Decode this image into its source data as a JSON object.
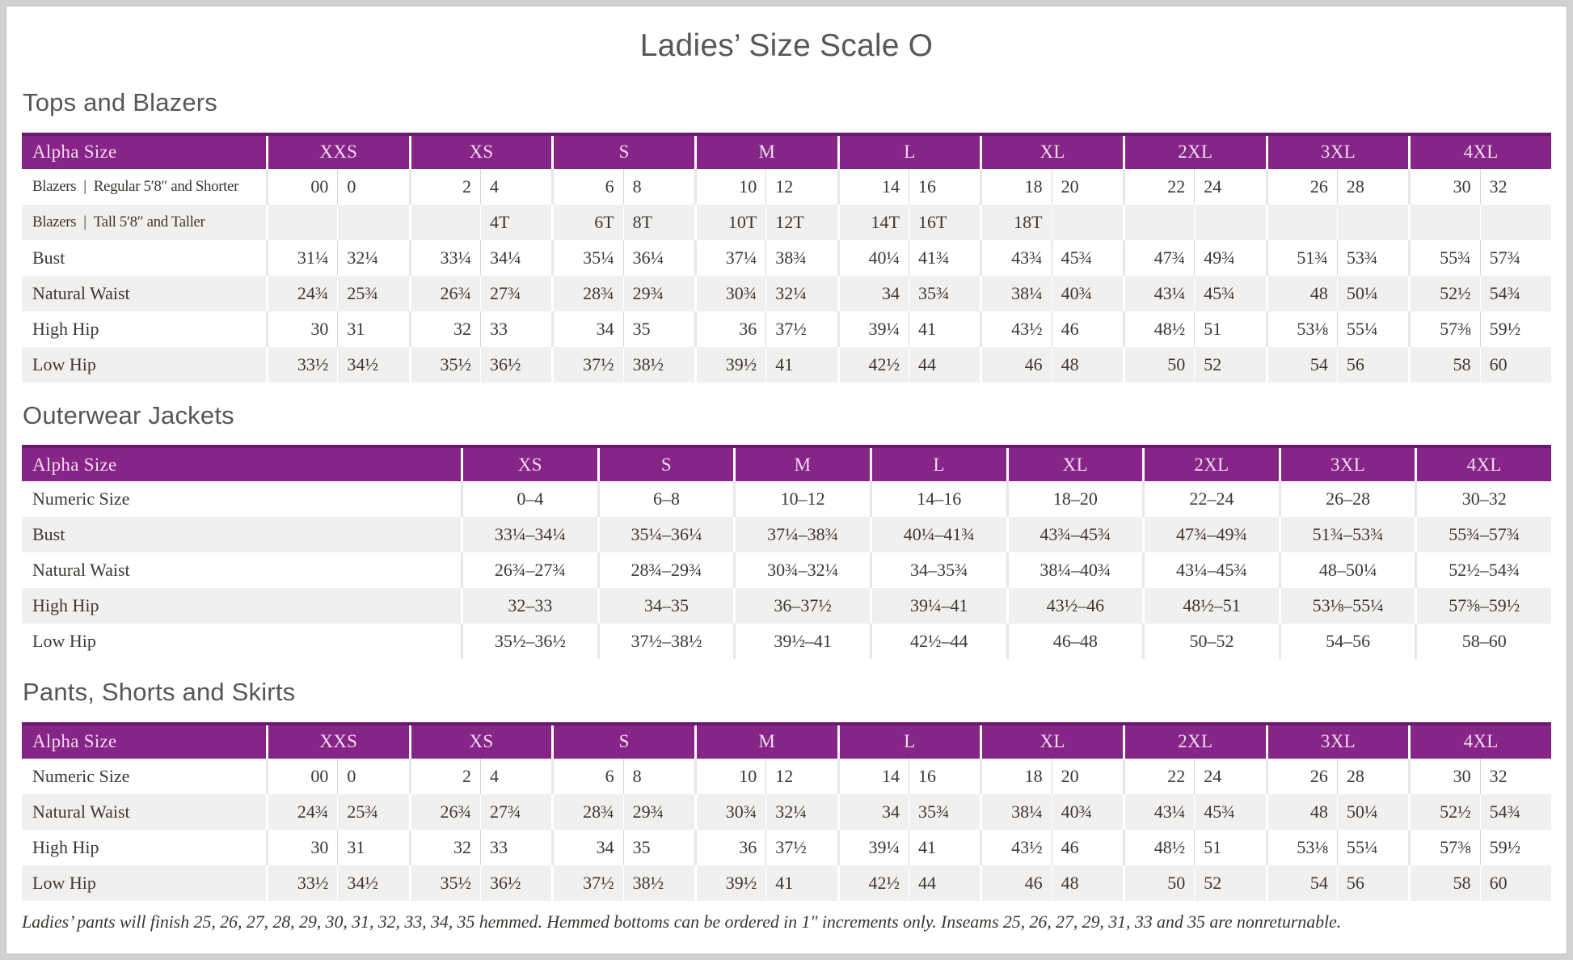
{
  "page": {
    "title": "Ladies’ Size Scale O",
    "footnote": "Ladies’ pants will finish 25, 26, 27, 28, 29, 30, 31, 32, 33, 34, 35 hemmed. Hemmed bottoms can be ordered in 1″ increments only. Inseams 25, 26, 27, 29, 31, 33 and 35 are nonreturnable."
  },
  "colors": {
    "header_purple": "#862487",
    "header_top_line": "#691a6d",
    "header_text": "#f1dcef",
    "row_alt_gray": "#f1f0ee",
    "heading_gray": "#56585a",
    "body_text": "#3b3733",
    "cell_divider": "#d9d7d3",
    "page_frame": "#d3d1cf"
  },
  "tables": [
    {
      "id": "tops-and-blazers",
      "heading": "Tops and Blazers",
      "header_label": "Alpha Size",
      "split": true,
      "sizes": [
        "XXS",
        "XS",
        "S",
        "M",
        "L",
        "XL",
        "2XL",
        "3XL",
        "4XL"
      ],
      "rows": [
        {
          "label": "Blazers | Regular 5′8″ and Shorter",
          "values": [
            "00",
            "0",
            "2",
            "4",
            "6",
            "8",
            "10",
            "12",
            "14",
            "16",
            "18",
            "20",
            "22",
            "24",
            "26",
            "28",
            "30",
            "32"
          ]
        },
        {
          "label": "Blazers | Tall 5′8″ and Taller",
          "values": [
            "",
            "",
            "",
            "4T",
            "6T",
            "8T",
            "10T",
            "12T",
            "14T",
            "16T",
            "18T",
            "",
            "",
            "",
            "",
            "",
            "",
            ""
          ]
        },
        {
          "label": "Bust",
          "values": [
            "31¼",
            "32¼",
            "33¼",
            "34¼",
            "35¼",
            "36¼",
            "37¼",
            "38¾",
            "40¼",
            "41¾",
            "43¾",
            "45¾",
            "47¾",
            "49¾",
            "51¾",
            "53¾",
            "55¾",
            "57¾"
          ]
        },
        {
          "label": "Natural Waist",
          "values": [
            "24¾",
            "25¾",
            "26¾",
            "27¾",
            "28¾",
            "29¾",
            "30¾",
            "32¼",
            "34",
            "35¾",
            "38¼",
            "40¾",
            "43¼",
            "45¾",
            "48",
            "50¼",
            "52½",
            "54¾"
          ]
        },
        {
          "label": "High Hip",
          "values": [
            "30",
            "31",
            "32",
            "33",
            "34",
            "35",
            "36",
            "37½",
            "39¼",
            "41",
            "43½",
            "46",
            "48½",
            "51",
            "53⅛",
            "55¼",
            "57⅜",
            "59½"
          ]
        },
        {
          "label": "Low Hip",
          "values": [
            "33½",
            "34½",
            "35½",
            "36½",
            "37½",
            "38½",
            "39½",
            "41",
            "42½",
            "44",
            "46",
            "48",
            "50",
            "52",
            "54",
            "56",
            "58",
            "60"
          ]
        }
      ]
    },
    {
      "id": "outerwear-jackets",
      "heading": "Outerwear Jackets",
      "header_label": "Alpha Size",
      "split": false,
      "sizes": [
        "XS",
        "S",
        "M",
        "L",
        "XL",
        "2XL",
        "3XL",
        "4XL"
      ],
      "rows": [
        {
          "label": "Numeric Size",
          "values": [
            "0–4",
            "6–8",
            "10–12",
            "14–16",
            "18–20",
            "22–24",
            "26–28",
            "30–32"
          ]
        },
        {
          "label": "Bust",
          "values": [
            "33¼–34¼",
            "35¼–36¼",
            "37¼–38¾",
            "40¼–41¾",
            "43¾–45¾",
            "47¾–49¾",
            "51¾–53¾",
            "55¾–57¾"
          ]
        },
        {
          "label": "Natural Waist",
          "values": [
            "26¾–27¾",
            "28¾–29¾",
            "30¾–32¼",
            "34–35¾",
            "38¼–40¾",
            "43¼–45¾",
            "48–50¼",
            "52½–54¾"
          ]
        },
        {
          "label": "High Hip",
          "values": [
            "32–33",
            "34–35",
            "36–37½",
            "39¼–41",
            "43½–46",
            "48½–51",
            "53⅛–55¼",
            "57⅜–59½"
          ]
        },
        {
          "label": "Low Hip",
          "values": [
            "35½–36½",
            "37½–38½",
            "39½–41",
            "42½–44",
            "46–48",
            "50–52",
            "54–56",
            "58–60"
          ]
        }
      ]
    },
    {
      "id": "pants-shorts-and-skirts",
      "heading": "Pants, Shorts and Skirts",
      "header_label": "Alpha Size",
      "split": true,
      "sizes": [
        "XXS",
        "XS",
        "S",
        "M",
        "L",
        "XL",
        "2XL",
        "3XL",
        "4XL"
      ],
      "rows": [
        {
          "label": "Numeric Size",
          "values": [
            "00",
            "0",
            "2",
            "4",
            "6",
            "8",
            "10",
            "12",
            "14",
            "16",
            "18",
            "20",
            "22",
            "24",
            "26",
            "28",
            "30",
            "32"
          ]
        },
        {
          "label": "Natural Waist",
          "values": [
            "24¾",
            "25¾",
            "26¾",
            "27¾",
            "28¾",
            "29¾",
            "30¾",
            "32¼",
            "34",
            "35¾",
            "38¼",
            "40¾",
            "43¼",
            "45¾",
            "48",
            "50¼",
            "52½",
            "54¾"
          ]
        },
        {
          "label": "High Hip",
          "values": [
            "30",
            "31",
            "32",
            "33",
            "34",
            "35",
            "36",
            "37½",
            "39¼",
            "41",
            "43½",
            "46",
            "48½",
            "51",
            "53⅛",
            "55¼",
            "57⅜",
            "59½"
          ]
        },
        {
          "label": "Low Hip",
          "values": [
            "33½",
            "34½",
            "35½",
            "36½",
            "37½",
            "38½",
            "39½",
            "41",
            "42½",
            "44",
            "46",
            "48",
            "50",
            "52",
            "54",
            "56",
            "58",
            "60"
          ]
        }
      ]
    }
  ]
}
